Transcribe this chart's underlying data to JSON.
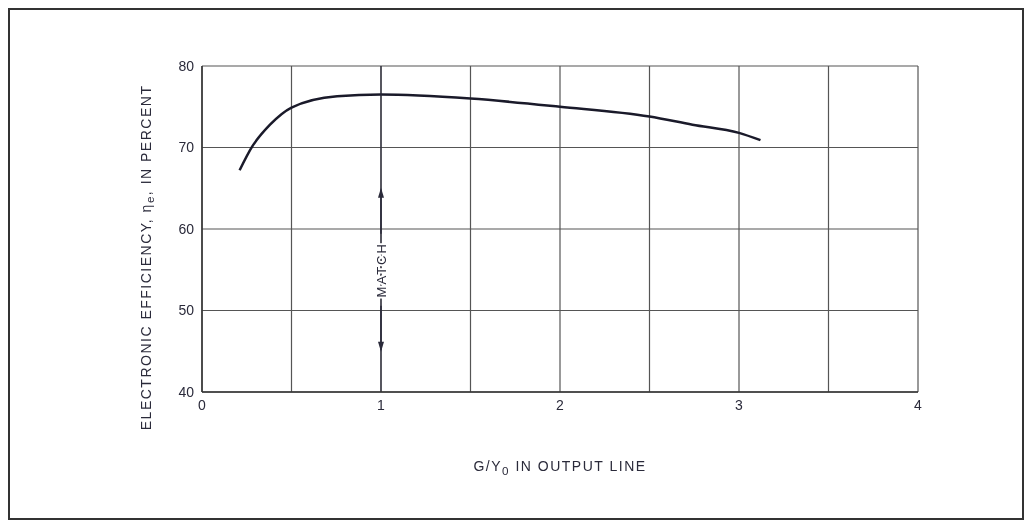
{
  "chart_data": {
    "type": "line",
    "xlabel": "G/Y$_{0}$ IN OUTPUT LINE",
    "ylabel": "ELECTRONIC EFFICIENCY, η$_{e}$, IN PERCENT",
    "series": [
      {
        "color": "#1a1a2a",
        "x": [
          0.21,
          0.28,
          0.38,
          0.5,
          0.755,
          1.0,
          1.5,
          2.0,
          2.5,
          2.74,
          3.0,
          3.12
        ],
        "values": [
          67.2,
          70.1,
          72.8,
          74.9,
          76.3,
          76.5,
          76.0,
          75.0,
          73.8,
          72.8,
          71.8,
          70.9
        ]
      }
    ],
    "xlim": [
      0,
      4
    ],
    "xticks": [
      0,
      {
        "value": 0.5,
        "label": null
      },
      1,
      {
        "value": 1.5,
        "label": null
      },
      2,
      {
        "value": 2.5,
        "label": null
      },
      3,
      {
        "value": 3.5,
        "label": null
      },
      4
    ],
    "ylim": [
      40,
      80
    ],
    "yticks": [
      40,
      50,
      60,
      70,
      80
    ],
    "grid": true,
    "marker": "none",
    "line_style": "solid",
    "ref_lines": [
      {
        "axis": "x",
        "value": 1,
        "label": "MATCH",
        "color": "#2a2a3a"
      }
    ]
  }
}
